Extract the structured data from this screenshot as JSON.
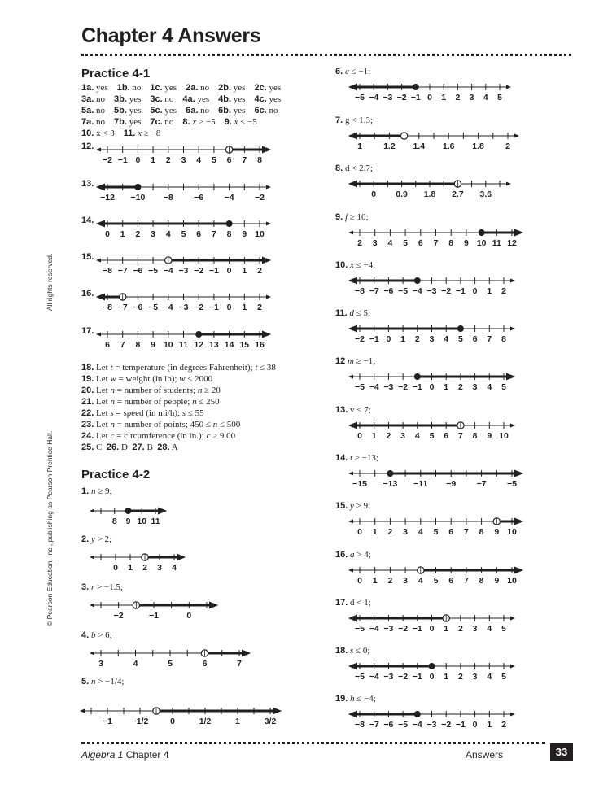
{
  "title": "Chapter 4 Answers",
  "side_text": {
    "rights": "All rights reserved.",
    "copyright": "© Pearson Education, Inc., publishing as Pearson Prentice Hall."
  },
  "practice1": {
    "heading": "Practice 4-1",
    "lines": [
      [
        [
          "1a.",
          "yes"
        ],
        [
          "1b.",
          "no"
        ],
        [
          "1c.",
          "yes"
        ],
        [
          "2a.",
          "no"
        ],
        [
          "2b.",
          "yes"
        ],
        [
          "2c.",
          "yes"
        ]
      ],
      [
        [
          "3a.",
          "no"
        ],
        [
          "3b.",
          "yes"
        ],
        [
          "3c.",
          "no"
        ],
        [
          "4a.",
          "yes"
        ],
        [
          "4b.",
          "yes"
        ],
        [
          "4c.",
          "yes"
        ]
      ],
      [
        [
          "5a.",
          "no"
        ],
        [
          "5b.",
          "yes"
        ],
        [
          "5c.",
          "yes"
        ],
        [
          "6a.",
          "no"
        ],
        [
          "6b.",
          "yes"
        ],
        [
          "6c.",
          "no"
        ]
      ],
      [
        [
          "7a.",
          "no"
        ],
        [
          "7b.",
          "yes"
        ],
        [
          "7c.",
          "no"
        ],
        [
          "8.",
          "x > −5"
        ],
        [
          "9.",
          "x ≤ −5"
        ]
      ],
      [
        [
          "10.",
          "x < 3"
        ],
        [
          "11.",
          "x ≥ −8"
        ]
      ]
    ],
    "numberlines": [
      {
        "num": "12.",
        "ticks": [
          -2,
          -1,
          0,
          1,
          2,
          3,
          4,
          5,
          6,
          7,
          8
        ],
        "labels": [
          "−2",
          "−1",
          "0",
          "1",
          "2",
          "3",
          "4",
          "5",
          "6",
          "7",
          "8"
        ],
        "point": 6,
        "open": true,
        "dir": "right"
      },
      {
        "num": "13.",
        "ticks": [
          -12,
          -11,
          -10,
          -9,
          -8,
          -7,
          -6,
          -5,
          -4,
          -3,
          -2
        ],
        "labels": [
          "−12",
          "",
          "−10",
          "",
          "−8",
          "",
          "−6",
          "",
          "−4",
          "",
          "−2"
        ],
        "point": -10,
        "open": false,
        "dir": "left"
      },
      {
        "num": "14.",
        "ticks": [
          0,
          1,
          2,
          3,
          4,
          5,
          6,
          7,
          8,
          9,
          10
        ],
        "labels": [
          "0",
          "1",
          "2",
          "3",
          "4",
          "5",
          "6",
          "7",
          "8",
          "9",
          "10"
        ],
        "point": 8,
        "open": false,
        "dir": "left"
      },
      {
        "num": "15.",
        "ticks": [
          -8,
          -7,
          -6,
          -5,
          -4,
          -3,
          -2,
          -1,
          0,
          1,
          2
        ],
        "labels": [
          "−8",
          "−7",
          "−6",
          "−5",
          "−4",
          "−3",
          "−2",
          "−1",
          "0",
          "1",
          "2"
        ],
        "point": -4,
        "open": true,
        "dir": "right"
      },
      {
        "num": "16.",
        "ticks": [
          -8,
          -7,
          -6,
          -5,
          -4,
          -3,
          -2,
          -1,
          0,
          1,
          2
        ],
        "labels": [
          "−8",
          "−7",
          "−6",
          "−5",
          "−4",
          "−3",
          "−2",
          "−1",
          "0",
          "1",
          "2"
        ],
        "point": -7,
        "open": true,
        "dir": "left"
      },
      {
        "num": "17.",
        "ticks": [
          6,
          7,
          8,
          9,
          10,
          11,
          12,
          13,
          14,
          15,
          16
        ],
        "labels": [
          "6",
          "7",
          "8",
          "9",
          "10",
          "11",
          "12",
          "13",
          "14",
          "15",
          "16"
        ],
        "point": 12,
        "open": false,
        "dir": "right"
      }
    ],
    "word_answers": [
      [
        "18.",
        "Let t = temperature (in degrees Fahrenheit); t ≤ 38"
      ],
      [
        "19.",
        "Let w = weight (in lb); w ≤ 2000"
      ],
      [
        "20.",
        "Let n = number of students; n ≥ 20"
      ],
      [
        "21.",
        "Let n = number of people; n ≤ 250"
      ],
      [
        "22.",
        "Let s = speed (in mi/h); s ≤ 55"
      ],
      [
        "23.",
        "Let n = number of points; 450 ≤ n ≤ 500"
      ],
      [
        "24.",
        "Let c = circumference (in in.); c ≥ 9.00"
      ]
    ],
    "mc": [
      [
        "25.",
        "C"
      ],
      [
        "26.",
        "D"
      ],
      [
        "27.",
        "B"
      ],
      [
        "28.",
        "A"
      ]
    ]
  },
  "practice2": {
    "heading": "Practice 4-2",
    "problems": [
      {
        "num": "1.",
        "expr": "n ≥ 9;",
        "ticks": [
          7,
          8,
          9,
          10,
          11
        ],
        "labels": [
          "",
          "8",
          "9",
          "10",
          "11"
        ],
        "point": 9,
        "open": false,
        "dir": "right"
      },
      {
        "num": "2.",
        "expr": "y > 2;",
        "ticks": [
          -1,
          0,
          1,
          2,
          3,
          4
        ],
        "labels": [
          "",
          "0",
          "1",
          "2",
          "3",
          "4"
        ],
        "point": 2,
        "open": true,
        "dir": "right"
      },
      {
        "num": "3.",
        "expr": "r > −1.5;",
        "ticks": [
          -2.5,
          -2,
          -1.5,
          -1,
          -0.5,
          0,
          0.5
        ],
        "labels": [
          "",
          "−2",
          "",
          "−1",
          "",
          "0",
          ""
        ],
        "point": -1.5,
        "open": true,
        "dir": "right"
      },
      {
        "num": "4.",
        "expr": "b > 6;",
        "ticks": [
          3,
          3.5,
          4,
          4.5,
          5,
          5.5,
          6,
          6.5,
          7
        ],
        "labels": [
          "3",
          "",
          "4",
          "",
          "5",
          "",
          "6",
          "",
          "7"
        ],
        "point": 6,
        "open": true,
        "dir": "right"
      },
      {
        "num": "5.",
        "expr": "n > −1/4;",
        "ticks": [
          -1.25,
          -1,
          -0.75,
          -0.5,
          -0.25,
          0,
          0.25,
          0.5,
          0.75,
          1,
          1.25,
          1.5
        ],
        "labels": [
          "",
          "−1",
          "",
          "−1/2",
          "",
          "0",
          "",
          "1/2",
          "",
          "1",
          "",
          "3/2"
        ],
        "point": -0.25,
        "open": true,
        "dir": "right"
      },
      {
        "num": "6.",
        "expr": "c ≤ −1;",
        "ticks": [
          -5,
          -4,
          -3,
          -2,
          -1,
          0,
          1,
          2,
          3,
          4,
          5
        ],
        "labels": [
          "−5",
          "−4",
          "−3",
          "−2",
          "−1",
          "0",
          "1",
          "2",
          "3",
          "4",
          "5"
        ],
        "point": -1,
        "open": false,
        "dir": "left"
      },
      {
        "num": "7.",
        "expr": "g < 1.3;",
        "ticks": [
          1,
          1.1,
          1.2,
          1.3,
          1.4,
          1.5,
          1.6,
          1.7,
          1.8,
          1.9,
          2
        ],
        "labels": [
          "1",
          "",
          "1.2",
          "",
          "1.4",
          "",
          "1.6",
          "",
          "1.8",
          "",
          "2"
        ],
        "point": 1.3,
        "open": true,
        "dir": "left"
      },
      {
        "num": "8.",
        "expr": "d < 2.7;",
        "ticks": [
          -0.45,
          0,
          0.45,
          0.9,
          1.35,
          1.8,
          2.25,
          2.7,
          3.15,
          3.6,
          4.05
        ],
        "labels": [
          "",
          "0",
          "",
          "0.9",
          "",
          "1.8",
          "",
          "2.7",
          "",
          "3.6",
          ""
        ],
        "point": 2.7,
        "open": true,
        "dir": "left"
      },
      {
        "num": "9.",
        "expr": "f ≥ 10;",
        "ticks": [
          2,
          3,
          4,
          5,
          6,
          7,
          8,
          9,
          10,
          11,
          12
        ],
        "labels": [
          "2",
          "3",
          "4",
          "5",
          "6",
          "7",
          "8",
          "9",
          "10",
          "11",
          "12"
        ],
        "point": 10,
        "open": false,
        "dir": "right"
      },
      {
        "num": "10.",
        "expr": "x ≤ −4;",
        "ticks": [
          -8,
          -7,
          -6,
          -5,
          -4,
          -3,
          -2,
          -1,
          0,
          1,
          2
        ],
        "labels": [
          "−8",
          "−7",
          "−6",
          "−5",
          "−4",
          "−3",
          "−2",
          "−1",
          "0",
          "1",
          "2"
        ],
        "point": -4,
        "open": false,
        "dir": "left"
      },
      {
        "num": "11.",
        "expr": "d ≤ 5;",
        "ticks": [
          -2,
          -1,
          0,
          1,
          2,
          3,
          4,
          5,
          6,
          7,
          8
        ],
        "labels": [
          "−2",
          "−1",
          "0",
          "1",
          "2",
          "3",
          "4",
          "5",
          "6",
          "7",
          "8"
        ],
        "point": 5,
        "open": false,
        "dir": "left"
      },
      {
        "num": "12",
        "expr": "m ≥ −1;",
        "ticks": [
          -5,
          -4,
          -3,
          -2,
          -1,
          0,
          1,
          2,
          3,
          4,
          5
        ],
        "labels": [
          "−5",
          "−4",
          "−3",
          "−2",
          "−1",
          "0",
          "1",
          "2",
          "3",
          "4",
          "5"
        ],
        "point": -1,
        "open": false,
        "dir": "right"
      },
      {
        "num": "13.",
        "expr": "v < 7;",
        "ticks": [
          0,
          1,
          2,
          3,
          4,
          5,
          6,
          7,
          8,
          9,
          10
        ],
        "labels": [
          "0",
          "1",
          "2",
          "3",
          "4",
          "5",
          "6",
          "7",
          "8",
          "9",
          "10"
        ],
        "point": 7,
        "open": true,
        "dir": "left"
      },
      {
        "num": "14.",
        "expr": "t ≥ −13;",
        "ticks": [
          -15,
          -14,
          -13,
          -12,
          -11,
          -10,
          -9,
          -8,
          -7,
          -6,
          -5
        ],
        "labels": [
          "−15",
          "",
          "−13",
          "",
          "−11",
          "",
          "−9",
          "",
          "−7",
          "",
          "−5"
        ],
        "point": -13,
        "open": false,
        "dir": "right"
      },
      {
        "num": "15.",
        "expr": "y > 9;",
        "ticks": [
          0,
          1,
          2,
          3,
          4,
          5,
          6,
          7,
          8,
          9,
          10
        ],
        "labels": [
          "0",
          "1",
          "2",
          "3",
          "4",
          "5",
          "6",
          "7",
          "8",
          "9",
          "10"
        ],
        "point": 9,
        "open": true,
        "dir": "right"
      },
      {
        "num": "16.",
        "expr": "a > 4;",
        "ticks": [
          0,
          1,
          2,
          3,
          4,
          5,
          6,
          7,
          8,
          9,
          10
        ],
        "labels": [
          "0",
          "1",
          "2",
          "3",
          "4",
          "5",
          "6",
          "7",
          "8",
          "9",
          "10"
        ],
        "point": 4,
        "open": true,
        "dir": "right"
      },
      {
        "num": "17.",
        "expr": "d < 1;",
        "ticks": [
          -5,
          -4,
          -3,
          -2,
          -1,
          0,
          1,
          2,
          3,
          4,
          5
        ],
        "labels": [
          "−5",
          "−4",
          "−3",
          "−2",
          "−1",
          "0",
          "1",
          "2",
          "3",
          "4",
          "5"
        ],
        "point": 1,
        "open": true,
        "dir": "left"
      },
      {
        "num": "18.",
        "expr": "s ≤ 0;",
        "ticks": [
          -5,
          -4,
          -3,
          -2,
          -1,
          0,
          1,
          2,
          3,
          4,
          5
        ],
        "labels": [
          "−5",
          "−4",
          "−3",
          "−2",
          "−1",
          "0",
          "1",
          "2",
          "3",
          "4",
          "5"
        ],
        "point": 0,
        "open": false,
        "dir": "left"
      },
      {
        "num": "19.",
        "expr": "h ≤ −4;",
        "ticks": [
          -8,
          -7,
          -6,
          -5,
          -4,
          -3,
          -2,
          -1,
          0,
          1,
          2
        ],
        "labels": [
          "−8",
          "−7",
          "−6",
          "−5",
          "−4",
          "−3",
          "−2",
          "−1",
          "0",
          "1",
          "2"
        ],
        "point": -4,
        "open": false,
        "dir": "left"
      }
    ]
  },
  "footer": {
    "book": "Algebra 1",
    "chapter": "Chapter 4",
    "section": "Answers",
    "page": "33"
  }
}
